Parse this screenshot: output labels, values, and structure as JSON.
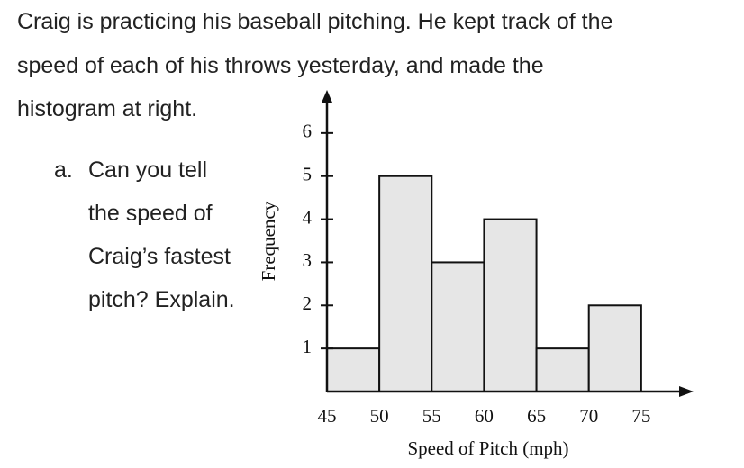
{
  "text": {
    "intro": [
      "Craig is practicing his baseball pitching. He kept track of the",
      "speed of each of his throws yesterday, and made the",
      "histogram at right."
    ],
    "question_label": "a.",
    "question": [
      "Can you tell",
      "the speed of",
      "Craig’s fastest",
      "pitch? Explain."
    ]
  },
  "chart_data": {
    "type": "histogram",
    "bins": [
      45,
      50,
      55,
      60,
      65,
      70,
      75
    ],
    "counts": [
      1,
      5,
      3,
      4,
      1,
      2
    ],
    "color": "#e6e6e6",
    "xlabel": "Speed of Pitch (mph)",
    "ylabel": "Frequency",
    "xlim": [
      45,
      80
    ],
    "ylim": [
      0,
      7
    ],
    "xticks": [
      45,
      50,
      55,
      60,
      65,
      70,
      75
    ],
    "yticks": [
      1,
      2,
      3,
      4,
      5,
      6
    ]
  }
}
